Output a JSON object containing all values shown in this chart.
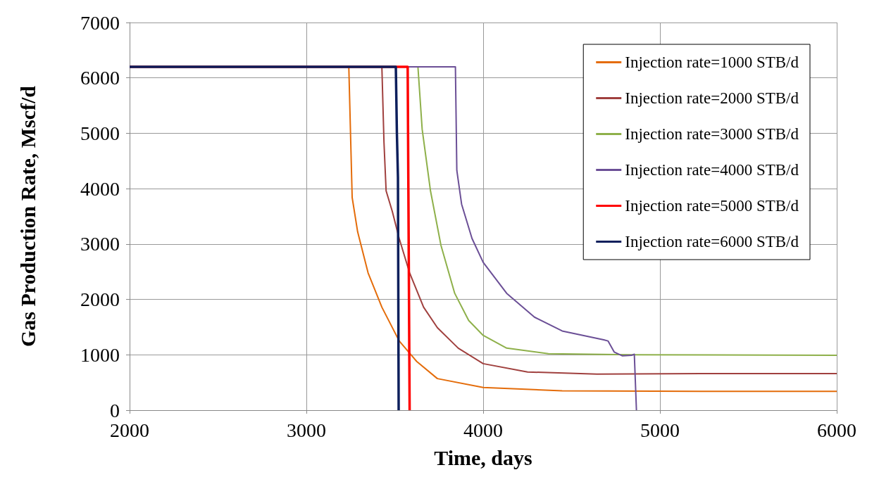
{
  "chart_data": {
    "type": "line",
    "xlabel": "Time, days",
    "ylabel": "Gas Production Rate, Mscf/d",
    "xlim": [
      2000,
      6000
    ],
    "xticks": [
      2000,
      3000,
      4000,
      5000,
      6000
    ],
    "ylim": [
      0,
      7000
    ],
    "yticks": [
      0,
      1000,
      2000,
      3000,
      4000,
      5000,
      6000,
      7000
    ],
    "grid": true,
    "legend": "top right",
    "marker": "none",
    "line_style": "solid",
    "series": [
      {
        "name": "Injection rate=1000 STB/d",
        "color": "#e46c0a",
        "x": [
          2000,
          3227,
          3240,
          3259,
          3290,
          3349,
          3427,
          3525,
          3624,
          3741,
          4000,
          4447,
          5231,
          6000
        ],
        "values": [
          6200,
          6200,
          6200,
          3840,
          3220,
          2480,
          1860,
          1250,
          880,
          570,
          410,
          350,
          340,
          340
        ]
      },
      {
        "name": "Injection rate=2000 STB/d",
        "color": "#a0403e",
        "x": [
          2000,
          3416,
          3427,
          3439,
          3451,
          3486,
          3525,
          3584,
          3663,
          3741,
          3859,
          4000,
          4251,
          4643,
          5231,
          6000
        ],
        "values": [
          6200,
          6200,
          6200,
          4830,
          3960,
          3590,
          3100,
          2480,
          1860,
          1490,
          1120,
          840,
          690,
          650,
          660,
          660
        ]
      },
      {
        "name": "Injection rate=3000 STB/d",
        "color": "#8eb04a",
        "x": [
          2000,
          3610,
          3631,
          3655,
          3702,
          3761,
          3839,
          3918,
          4000,
          4133,
          4369,
          4839,
          6000
        ],
        "values": [
          6200,
          6200,
          6200,
          5070,
          3960,
          2980,
          2110,
          1620,
          1350,
          1120,
          1020,
          1000,
          990
        ]
      },
      {
        "name": "Injection rate=4000 STB/d",
        "color": "#6b4f96",
        "x": [
          2000,
          3835,
          3843,
          3851,
          3878,
          3937,
          4000,
          4133,
          4290,
          4447,
          4682,
          4706,
          4741,
          4788,
          4839,
          4855,
          4867
        ],
        "values": [
          6200,
          6200,
          6200,
          4330,
          3720,
          3100,
          2670,
          2110,
          1680,
          1430,
          1270,
          1250,
          1050,
          980,
          990,
          1010,
          0
        ]
      },
      {
        "name": "Injection rate=5000 STB/d",
        "color": "#ff0000",
        "x": [
          2000,
          3573,
          3584
        ],
        "values": [
          6200,
          6200,
          0
        ]
      },
      {
        "name": "Injection rate=6000 STB/d",
        "color": "#0d1f5c",
        "x": [
          2000,
          3506,
          3512,
          3518,
          3522
        ],
        "values": [
          6200,
          6200,
          5000,
          4200,
          0
        ]
      }
    ]
  }
}
